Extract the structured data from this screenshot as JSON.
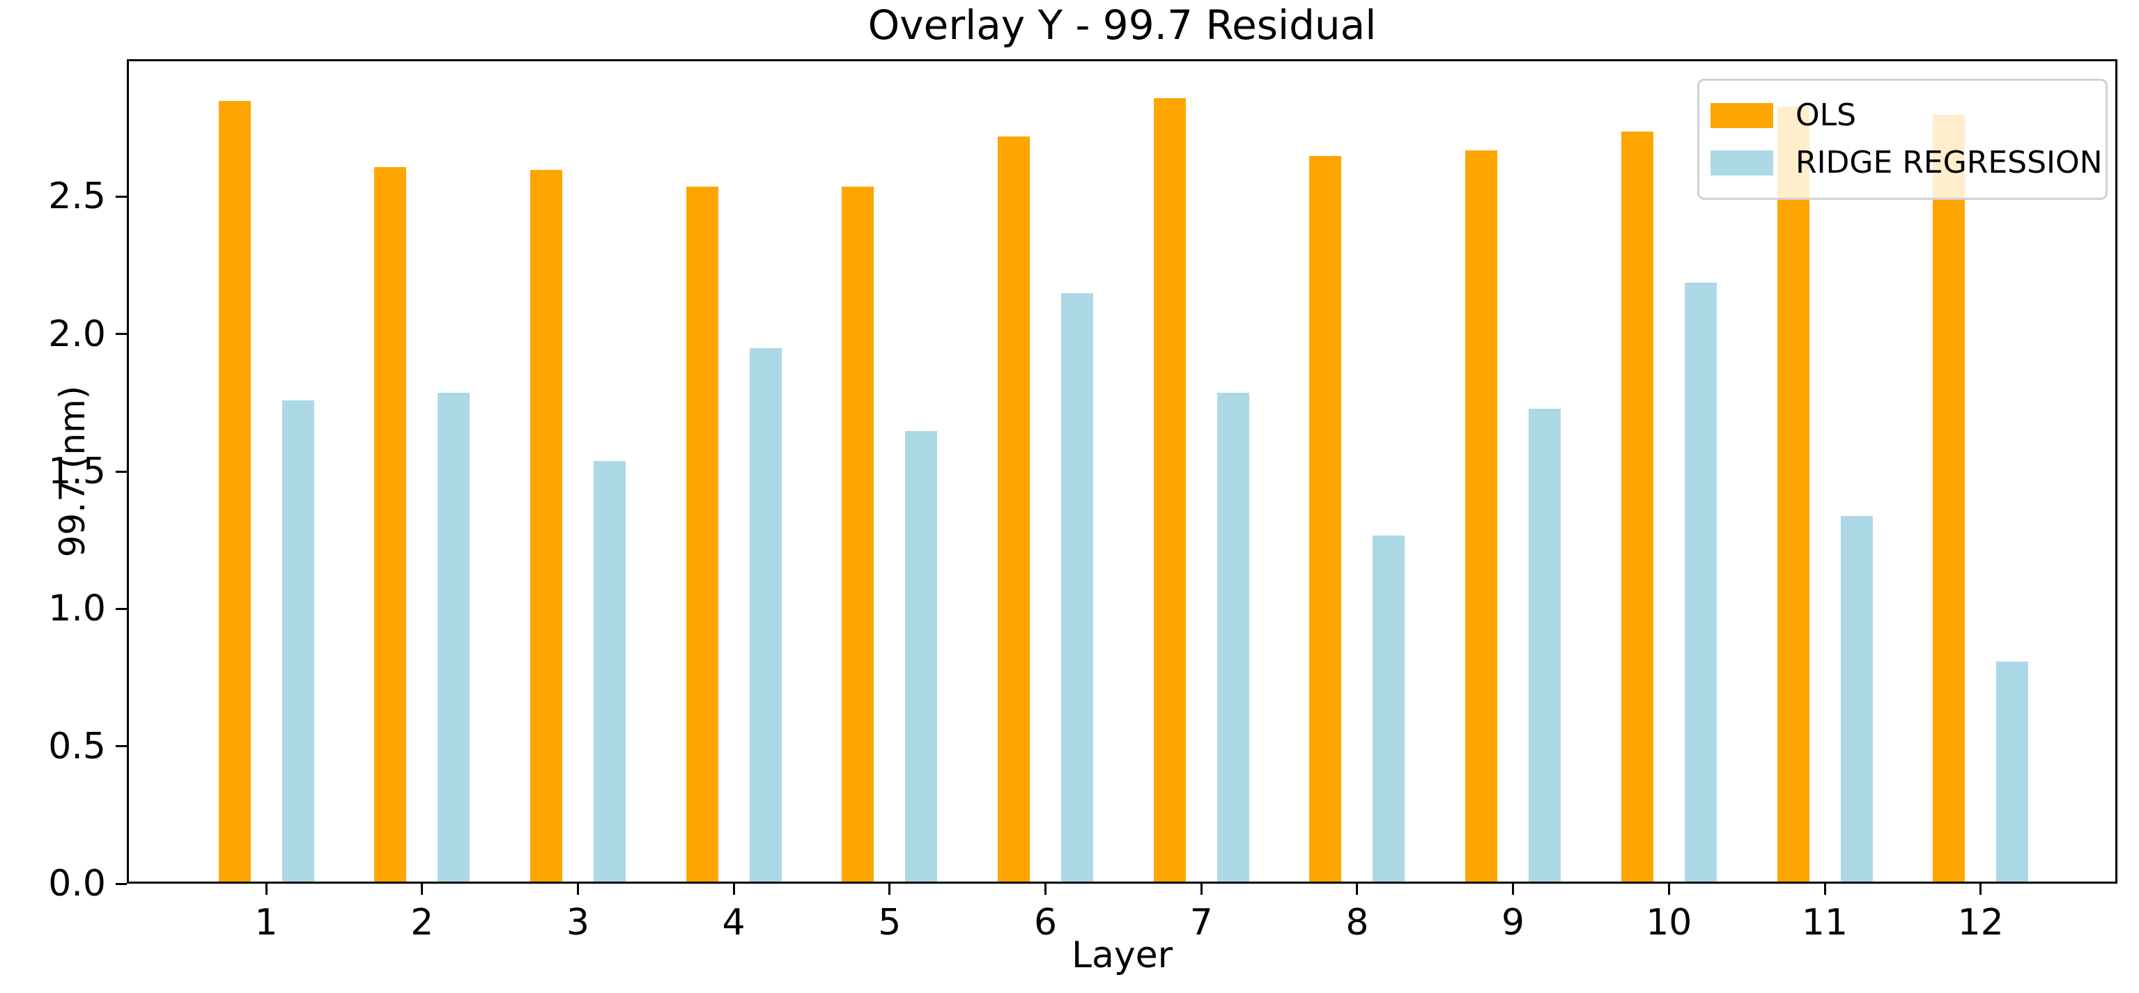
{
  "figure": {
    "title": "Overlay Y - 99.7 Residual",
    "xlabel": "Layer",
    "ylabel": "99.7 (nm)"
  },
  "legend": {
    "items": [
      {
        "label": "OLS",
        "color": "#FFA500"
      },
      {
        "label": "RIDGE REGRESSION",
        "color": "#ADD8E6"
      }
    ]
  },
  "chart_data": {
    "type": "bar",
    "title": "Overlay Y - 99.7 Residual",
    "xlabel": "Layer",
    "ylabel": "99.7 (nm)",
    "categories": [
      "1",
      "2",
      "3",
      "4",
      "5",
      "6",
      "7",
      "8",
      "9",
      "10",
      "11",
      "12"
    ],
    "series": [
      {
        "name": "OLS",
        "color": "#FFA500",
        "values": [
          2.84,
          2.6,
          2.59,
          2.53,
          2.53,
          2.71,
          2.85,
          2.64,
          2.66,
          2.73,
          2.82,
          2.79
        ]
      },
      {
        "name": "RIDGE REGRESSION",
        "color": "#ADD8E6",
        "values": [
          1.75,
          1.78,
          1.53,
          1.94,
          1.64,
          2.14,
          1.78,
          1.26,
          1.72,
          2.18,
          1.33,
          0.8
        ]
      }
    ],
    "ylim": [
      0,
      3.0
    ],
    "yticks": [
      0.0,
      0.5,
      1.0,
      1.5,
      2.0,
      2.5
    ],
    "ytick_labels": [
      "0.0",
      "0.5",
      "1.0",
      "1.5",
      "2.0",
      "2.5"
    ],
    "grid": false,
    "legend_position": "upper right",
    "background": "#ffffff"
  }
}
